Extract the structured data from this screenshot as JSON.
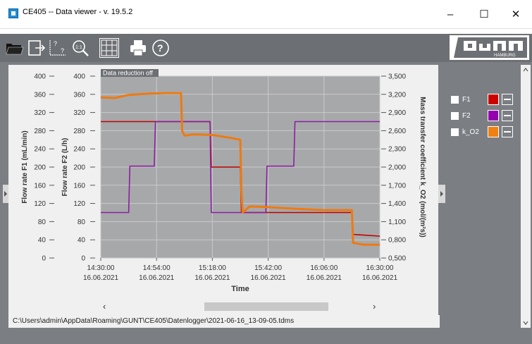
{
  "window": {
    "title": "CE405  --  Data viewer - v. 19.5.2",
    "minimize": "–",
    "maximize": "☐",
    "close": "✕"
  },
  "toolbar": {
    "buttons": [
      "open-folder-icon",
      "export-icon",
      "question-cursor-icon",
      "zoom-icon",
      "grid-icon",
      "print-icon",
      "help-icon"
    ],
    "logo_text": "HAMBURG"
  },
  "chart_data": {
    "type": "line",
    "banner": "Data reduction off",
    "xlabel": "Time",
    "x_ticks": [
      {
        "time": "14:30:00",
        "date": "16.06.2021"
      },
      {
        "time": "14:54:00",
        "date": "16.06.2021"
      },
      {
        "time": "15:18:00",
        "date": "16.06.2021"
      },
      {
        "time": "15:42:00",
        "date": "16.06.2021"
      },
      {
        "time": "16:06:00",
        "date": "16.06.2021"
      },
      {
        "time": "16:30:00",
        "date": "16.06.2021"
      }
    ],
    "axes": {
      "left1": {
        "label": "Flow rate  F1   (mL/min)",
        "range": [
          0,
          400
        ],
        "ticks": [
          "400",
          "360",
          "320",
          "280",
          "240",
          "200",
          "160",
          "120",
          "80",
          "40",
          "0"
        ]
      },
      "left2": {
        "label": "Flow rate  F2   (L/h)",
        "range": [
          0,
          400
        ],
        "ticks": [
          "400",
          "360",
          "320",
          "280",
          "240",
          "200",
          "160",
          "120",
          "80",
          "40",
          "0"
        ]
      },
      "right": {
        "label": "Mass transfer coefficient  k_O2   (mol/(m²s))",
        "range": [
          0.5,
          3.5
        ],
        "ticks": [
          "3,500",
          "3,200",
          "2,900",
          "2,600",
          "2,300",
          "2,000",
          "1,700",
          "1,400",
          "1,100",
          "0,800",
          "0,500"
        ]
      }
    },
    "x_range_minutes": [
      0,
      120
    ],
    "series": [
      {
        "name": "F1",
        "axis": "left1",
        "color": "#c00000",
        "x": [
          0,
          34,
          34.5,
          47,
          47.5,
          60,
          60.5,
          108,
          108.5,
          120
        ],
        "y": [
          300,
          300,
          300,
          300,
          200,
          200,
          100,
          100,
          52,
          48
        ]
      },
      {
        "name": "F2",
        "axis": "left2",
        "color": "#8b1fa0",
        "x": [
          0,
          12,
          12.5,
          23,
          23.5,
          35,
          35.5,
          47,
          47.5,
          60,
          60.5,
          71,
          71.5,
          83,
          83.5,
          120
        ],
        "y": [
          100,
          100,
          202,
          202,
          300,
          300,
          300,
          300,
          100,
          100,
          100,
          100,
          202,
          202,
          300,
          300
        ]
      },
      {
        "name": "k_O2",
        "axis": "right",
        "color": "#ee7a10",
        "x": [
          0,
          6,
          12,
          20,
          28,
          34.5,
          35,
          36,
          40,
          48,
          56,
          60,
          60.5,
          61,
          64,
          72,
          84,
          96,
          108,
          108.5,
          113,
          120
        ],
        "y": [
          3.15,
          3.14,
          3.19,
          3.21,
          3.22,
          3.22,
          2.6,
          2.52,
          2.54,
          2.53,
          2.48,
          2.45,
          1.6,
          1.25,
          1.35,
          1.34,
          1.31,
          1.29,
          1.29,
          0.75,
          0.72,
          0.72
        ]
      }
    ]
  },
  "legend": {
    "items": [
      {
        "label": "F1",
        "color": "#cc0000"
      },
      {
        "label": "F2",
        "color": "#9400b0"
      },
      {
        "label": "k_O2",
        "color": "#f08010"
      }
    ]
  },
  "scrollbar": {
    "left_arrow": "‹",
    "right_arrow": "›"
  },
  "status": {
    "path": "C:\\Users\\admin\\AppData\\Roaming\\GUNT\\CE405\\Datenlogger\\2021-06-16_13-09-05.tdms"
  }
}
